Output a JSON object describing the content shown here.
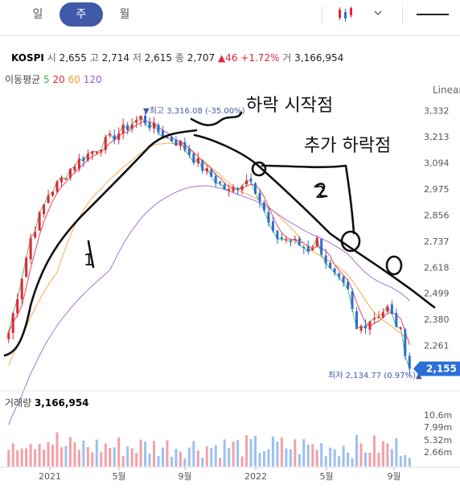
{
  "tabs": [
    {
      "label": "일"
    },
    {
      "label": "주",
      "active": true
    },
    {
      "label": "월"
    }
  ],
  "info": {
    "name": "KOSPI",
    "open_label": "시",
    "open": "2,655",
    "high_label": "고",
    "high": "2,714",
    "low_label": "저",
    "low": "2,615",
    "close_label": "종",
    "close": "2,707",
    "change": "▲46 +1.72%",
    "volume_label": "거",
    "volume": "3,166,954"
  },
  "ma_legend": {
    "label": "이동평균",
    "periods": [
      "5",
      "20",
      "60",
      "120"
    ],
    "colors": [
      "#3cb043",
      "#e0283a",
      "#f0a030",
      "#9b59d0"
    ]
  },
  "scale_label": "Linear",
  "chart_data": {
    "type": "candlestick",
    "y_ticks": [
      3332,
      3213,
      3094,
      2975,
      2856,
      2737,
      2618,
      2499,
      2380,
      2261
    ],
    "ylim": [
      2120,
      3360
    ],
    "x_tick_labels": [
      "2021",
      "5월",
      "9월",
      "2022",
      "5월",
      "9월"
    ],
    "current_price": 2155,
    "current_price_label": "2,155",
    "max_annotation": "▼최고 3,316.08 (-35.00%)",
    "min_annotation": "최저 2,134.77 (0.97%)▲",
    "close_path": [
      [
        0,
        2320
      ],
      [
        5,
        2750
      ],
      [
        9,
        2950
      ],
      [
        15,
        3090
      ],
      [
        22,
        3190
      ],
      [
        30,
        3300
      ],
      [
        35,
        3220
      ],
      [
        39,
        3180
      ],
      [
        45,
        3050
      ],
      [
        50,
        2960
      ],
      [
        55,
        3030
      ],
      [
        60,
        2760
      ],
      [
        64,
        2740
      ],
      [
        68,
        2700
      ],
      [
        70,
        2740
      ],
      [
        73,
        2600
      ],
      [
        77,
        2500
      ],
      [
        79,
        2330
      ],
      [
        82,
        2380
      ],
      [
        86,
        2430
      ],
      [
        89,
        2320
      ],
      [
        91,
        2155
      ]
    ],
    "volume_label": "거래량",
    "volume": "3,166,954",
    "volume_ticks": [
      "10.6m",
      "7.99m",
      "5.32m",
      "2.66m"
    ]
  },
  "annotations": {
    "note1": "하락 시작점",
    "note2": "추가 하락점",
    "num1": "1",
    "num2": "2"
  },
  "colors": {
    "up": "#e0283a",
    "down": "#2b6fd6",
    "accent": "#3f5aa8"
  }
}
